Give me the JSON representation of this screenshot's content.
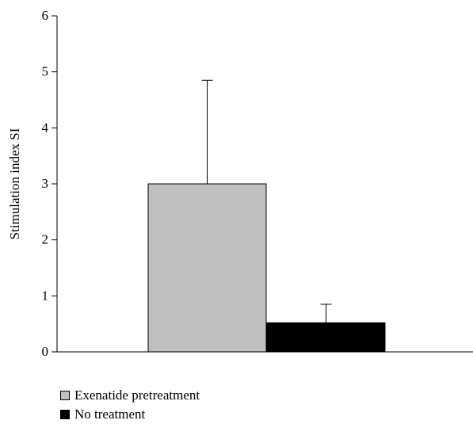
{
  "chart_data": {
    "type": "bar",
    "ylabel": "Stimulation index SI",
    "ylim": [
      0,
      6
    ],
    "yticks": [
      "0",
      "1",
      "2",
      "3",
      "4",
      "5",
      "6"
    ],
    "grid": false,
    "legend_position": "bottom-left",
    "series": [
      {
        "name": "Exenatide pretreatment",
        "value": 3.0,
        "error": 1.85,
        "color": "#c0c0c0"
      },
      {
        "name": "No treatment",
        "value": 0.52,
        "error": 0.33,
        "color": "#000000"
      }
    ]
  },
  "legend": {
    "items": [
      {
        "label": "Exenatide pretreatment",
        "color": "#c0c0c0"
      },
      {
        "label": "No treatment",
        "color": "#000000"
      }
    ]
  }
}
